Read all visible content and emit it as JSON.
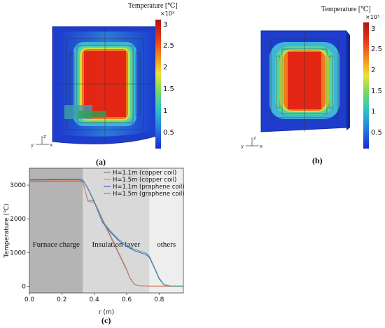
{
  "panels": [
    {
      "label": "(a)",
      "colorbar": {
        "title": "Temperature [℃]",
        "exponent": "×10³",
        "ticks": [
          "3",
          "2.5",
          "2",
          "1.5",
          "1",
          "0.5"
        ]
      },
      "triad": {
        "z": "z",
        "y": "y",
        "x": "x"
      }
    },
    {
      "label": "(b)",
      "colorbar": {
        "title": "Temperature [℃]",
        "exponent": "×10³",
        "ticks": [
          "3",
          "2.5",
          "2",
          "1.5",
          "1",
          "0.5"
        ]
      },
      "triad": {
        "z": "z",
        "y": "y",
        "x": "x"
      }
    }
  ],
  "plot_label": "(c)",
  "chart_data": {
    "type": "line",
    "xlabel": "r (m)",
    "ylabel": "Temperature (℃)",
    "xlim": [
      0.0,
      0.95
    ],
    "ylim": [
      -200,
      3500
    ],
    "xticks": [
      "0.0",
      "0.2",
      "0.4",
      "0.6",
      "0.8"
    ],
    "yticks": [
      "0",
      "1000",
      "2000",
      "3000"
    ],
    "regions": [
      {
        "label": "Furnace charge",
        "x0": 0.0,
        "x1": 0.33,
        "color": "#b4b4b4"
      },
      {
        "label": "Insulation layer",
        "x0": 0.33,
        "x1": 0.74,
        "color": "#d9d9d9"
      },
      {
        "label": "others",
        "x0": 0.74,
        "x1": 0.95,
        "color": "#eeeeee"
      }
    ],
    "series": [
      {
        "name": "H=1.1m (copper coil)",
        "color": "#7a7a7a",
        "points": [
          [
            0,
            3100
          ],
          [
            0.1,
            3105
          ],
          [
            0.2,
            3110
          ],
          [
            0.3,
            3110
          ],
          [
            0.33,
            3080
          ],
          [
            0.36,
            2560
          ],
          [
            0.4,
            2520
          ],
          [
            0.45,
            2000
          ],
          [
            0.5,
            1500
          ],
          [
            0.55,
            1000
          ],
          [
            0.6,
            500
          ],
          [
            0.62,
            250
          ],
          [
            0.65,
            50
          ],
          [
            0.68,
            15
          ],
          [
            0.74,
            5
          ],
          [
            0.95,
            0
          ]
        ]
      },
      {
        "name": "H=1.5m (copper coil)",
        "color": "#d4836e",
        "points": [
          [
            0,
            3120
          ],
          [
            0.1,
            3125
          ],
          [
            0.2,
            3130
          ],
          [
            0.3,
            3130
          ],
          [
            0.33,
            3110
          ],
          [
            0.36,
            2520
          ],
          [
            0.4,
            2480
          ],
          [
            0.45,
            1960
          ],
          [
            0.5,
            1460
          ],
          [
            0.55,
            960
          ],
          [
            0.6,
            470
          ],
          [
            0.62,
            230
          ],
          [
            0.65,
            40
          ],
          [
            0.68,
            10
          ],
          [
            0.74,
            4
          ],
          [
            0.95,
            0
          ]
        ]
      },
      {
        "name": "H=1.1m (praphene coil)",
        "color": "#3a5fc8",
        "points": [
          [
            0,
            3150
          ],
          [
            0.1,
            3155
          ],
          [
            0.2,
            3160
          ],
          [
            0.3,
            3160
          ],
          [
            0.33,
            3140
          ],
          [
            0.36,
            2900
          ],
          [
            0.4,
            2500
          ],
          [
            0.45,
            1900
          ],
          [
            0.5,
            1600
          ],
          [
            0.55,
            1350
          ],
          [
            0.6,
            1180
          ],
          [
            0.65,
            1050
          ],
          [
            0.72,
            940
          ],
          [
            0.74,
            850
          ],
          [
            0.77,
            550
          ],
          [
            0.8,
            220
          ],
          [
            0.83,
            40
          ],
          [
            0.87,
            5
          ],
          [
            0.95,
            0
          ]
        ]
      },
      {
        "name": "H=1.5m (graphene coil)",
        "color": "#5fa08a",
        "points": [
          [
            0,
            3170
          ],
          [
            0.1,
            3175
          ],
          [
            0.2,
            3180
          ],
          [
            0.3,
            3180
          ],
          [
            0.33,
            3160
          ],
          [
            0.36,
            2920
          ],
          [
            0.4,
            2530
          ],
          [
            0.45,
            1930
          ],
          [
            0.5,
            1640
          ],
          [
            0.55,
            1390
          ],
          [
            0.6,
            1220
          ],
          [
            0.65,
            1090
          ],
          [
            0.72,
            980
          ],
          [
            0.74,
            890
          ],
          [
            0.77,
            580
          ],
          [
            0.8,
            250
          ],
          [
            0.83,
            50
          ],
          [
            0.87,
            8
          ],
          [
            0.95,
            0
          ]
        ]
      }
    ]
  }
}
